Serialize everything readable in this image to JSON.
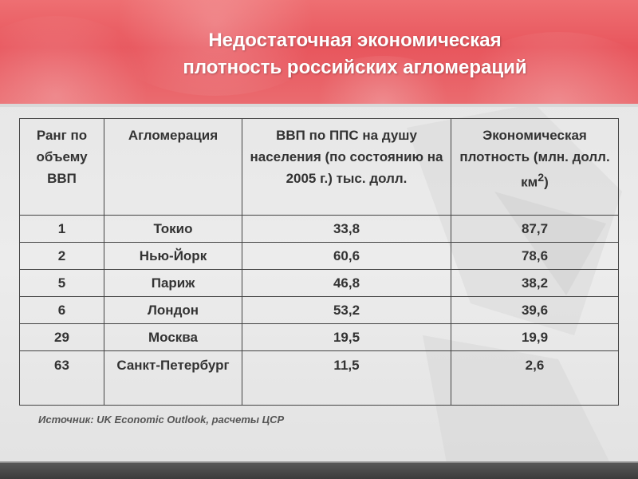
{
  "slide": {
    "title_line1": "Недостаточная экономическая",
    "title_line2": "плотность российских агломераций",
    "colors": {
      "header": "#e8565d",
      "text": "#333333",
      "footer": "#3c3c3c"
    }
  },
  "table": {
    "headers": {
      "rank": "Ранг по объему ВВП",
      "agglomeration": "Агломерация",
      "gdp": "ВВП по ППС на душу населения (по состоянию на 2005 г.) тыс. долл.",
      "density": "Экономическая плотность (млн. долл. км",
      "density_sup": "2",
      "density_close": ")"
    },
    "rows": [
      {
        "rank": "1",
        "city": "Токио",
        "gdp": "33,8",
        "density": "87,7"
      },
      {
        "rank": "2",
        "city": "Нью-Йорк",
        "gdp": "60,6",
        "density": "78,6"
      },
      {
        "rank": "5",
        "city": "Париж",
        "gdp": "46,8",
        "density": "38,2"
      },
      {
        "rank": "6",
        "city": "Лондон",
        "gdp": "53,2",
        "density": "39,6"
      },
      {
        "rank": "29",
        "city": "Москва",
        "gdp": "19,5",
        "density": "19,9"
      },
      {
        "rank": "63",
        "city": "Санкт-Петербург",
        "gdp": "11,5",
        "density": "2,6"
      }
    ]
  },
  "source": "Источник: UK Economic Outlook, расчеты ЦСР"
}
